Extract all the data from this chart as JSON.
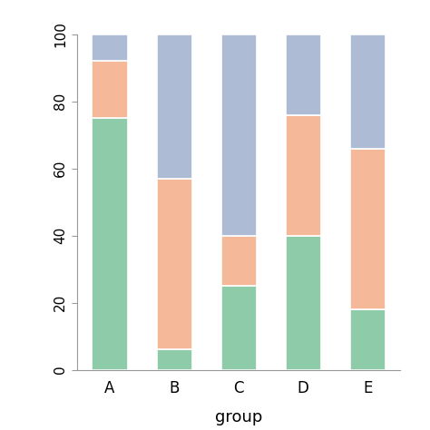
{
  "groups": [
    "A",
    "B",
    "C",
    "D",
    "E"
  ],
  "green": [
    75,
    6,
    25,
    40,
    18
  ],
  "orange": [
    17,
    51,
    15,
    36,
    48
  ],
  "blue": [
    8,
    43,
    60,
    24,
    34
  ],
  "color_green": "#8ECBA8",
  "color_orange": "#F5B899",
  "color_blue": "#ADBBD4",
  "xlabel": "group",
  "ylim": [
    0,
    100
  ],
  "yticks": [
    0,
    20,
    40,
    60,
    80,
    100
  ],
  "bar_width": 0.55,
  "background_color": "#FFFFFF",
  "edge_color": "white",
  "edge_linewidth": 1.2
}
